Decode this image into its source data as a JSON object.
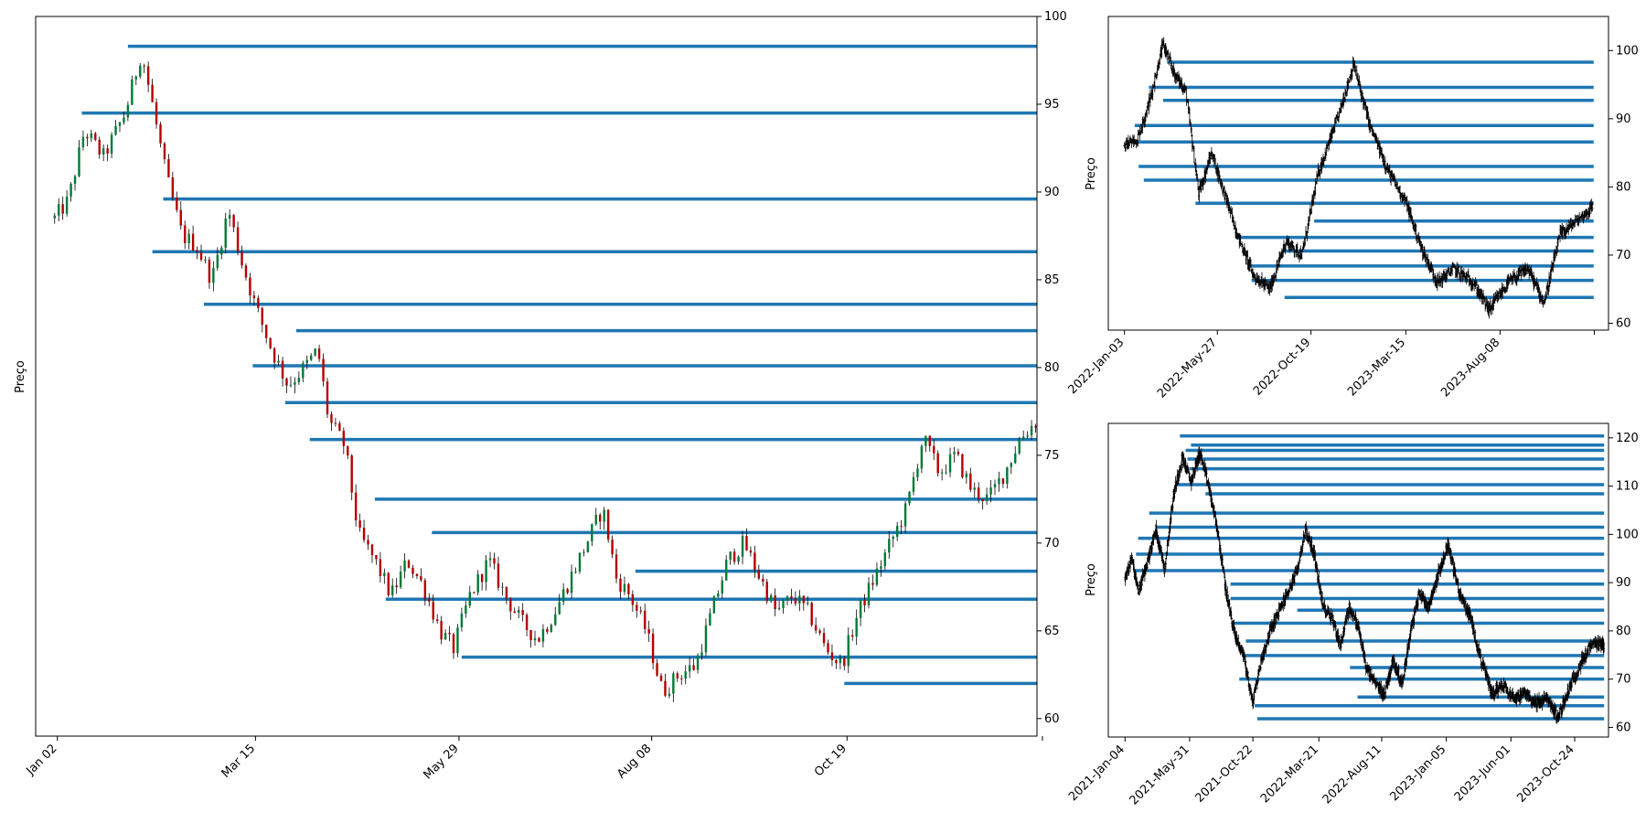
{
  "colors": {
    "level_line": "#1f77b4",
    "candle_up": "#007a37",
    "candle_down": "#b30000",
    "wick": "#000000",
    "frame": "#000000",
    "background": "#ffffff"
  },
  "chart_data": [
    {
      "id": "main",
      "type": "candlestick-with-levels",
      "ylabel": "Preço",
      "ylim": [
        59,
        100
      ],
      "yticks": [
        60,
        65,
        70,
        75,
        80,
        85,
        90,
        95,
        100
      ],
      "y_axis_side": "right",
      "xlim_days": [
        -7,
        362
      ],
      "xticks": [
        {
          "day": 1,
          "label": "Jan 02"
        },
        {
          "day": 74,
          "label": "Mar 15"
        },
        {
          "day": 149,
          "label": "May 29"
        },
        {
          "day": 220,
          "label": "Aug 08"
        },
        {
          "day": 292,
          "label": "Oct 19"
        },
        {
          "day": 364,
          "label": ""
        }
      ],
      "price_path": [
        {
          "day": 0,
          "price": 88.5
        },
        {
          "day": 5,
          "price": 89.5
        },
        {
          "day": 11,
          "price": 93.5
        },
        {
          "day": 18,
          "price": 92
        },
        {
          "day": 26,
          "price": 94.5
        },
        {
          "day": 32,
          "price": 98
        },
        {
          "day": 36,
          "price": 95
        },
        {
          "day": 41,
          "price": 91
        },
        {
          "day": 47,
          "price": 87.5
        },
        {
          "day": 52,
          "price": 87
        },
        {
          "day": 58,
          "price": 85
        },
        {
          "day": 64,
          "price": 89
        },
        {
          "day": 69,
          "price": 86
        },
        {
          "day": 74,
          "price": 83.5
        },
        {
          "day": 80,
          "price": 81
        },
        {
          "day": 86,
          "price": 79
        },
        {
          "day": 92,
          "price": 80
        },
        {
          "day": 97,
          "price": 81
        },
        {
          "day": 101,
          "price": 77
        },
        {
          "day": 107,
          "price": 75.5
        },
        {
          "day": 112,
          "price": 70.5
        },
        {
          "day": 118,
          "price": 69
        },
        {
          "day": 124,
          "price": 67
        },
        {
          "day": 130,
          "price": 69
        },
        {
          "day": 136,
          "price": 67.5
        },
        {
          "day": 142,
          "price": 65
        },
        {
          "day": 147,
          "price": 64
        },
        {
          "day": 153,
          "price": 67
        },
        {
          "day": 160,
          "price": 69
        },
        {
          "day": 166,
          "price": 67
        },
        {
          "day": 172,
          "price": 65.5
        },
        {
          "day": 178,
          "price": 64.5
        },
        {
          "day": 184,
          "price": 66
        },
        {
          "day": 190,
          "price": 68
        },
        {
          "day": 196,
          "price": 70
        },
        {
          "day": 202,
          "price": 72
        },
        {
          "day": 207,
          "price": 68
        },
        {
          "day": 212,
          "price": 67
        },
        {
          "day": 218,
          "price": 65
        },
        {
          "day": 224,
          "price": 61.5
        },
        {
          "day": 230,
          "price": 62.5
        },
        {
          "day": 236,
          "price": 63
        },
        {
          "day": 242,
          "price": 66
        },
        {
          "day": 248,
          "price": 69
        },
        {
          "day": 254,
          "price": 70
        },
        {
          "day": 260,
          "price": 68
        },
        {
          "day": 266,
          "price": 66
        },
        {
          "day": 272,
          "price": 67
        },
        {
          "day": 278,
          "price": 66
        },
        {
          "day": 284,
          "price": 64
        },
        {
          "day": 290,
          "price": 63
        },
        {
          "day": 296,
          "price": 66
        },
        {
          "day": 302,
          "price": 68
        },
        {
          "day": 308,
          "price": 70
        },
        {
          "day": 314,
          "price": 72
        },
        {
          "day": 320,
          "price": 76
        },
        {
          "day": 326,
          "price": 74
        },
        {
          "day": 332,
          "price": 75
        },
        {
          "day": 338,
          "price": 73
        },
        {
          "day": 344,
          "price": 72.5
        },
        {
          "day": 350,
          "price": 74
        },
        {
          "day": 356,
          "price": 76
        },
        {
          "day": 362,
          "price": 77
        }
      ],
      "levels": [
        {
          "price": 98.3,
          "from_day": 27,
          "to_day": 362
        },
        {
          "price": 94.5,
          "from_day": 10,
          "to_day": 362
        },
        {
          "price": 89.6,
          "from_day": 40,
          "to_day": 362
        },
        {
          "price": 86.6,
          "from_day": 36,
          "to_day": 362
        },
        {
          "price": 83.6,
          "from_day": 55,
          "to_day": 362
        },
        {
          "price": 82.1,
          "from_day": 89,
          "to_day": 362
        },
        {
          "price": 80.1,
          "from_day": 73,
          "to_day": 362
        },
        {
          "price": 78.0,
          "from_day": 85,
          "to_day": 362
        },
        {
          "price": 75.9,
          "from_day": 94,
          "to_day": 362
        },
        {
          "price": 72.5,
          "from_day": 118,
          "to_day": 362
        },
        {
          "price": 70.6,
          "from_day": 139,
          "to_day": 362
        },
        {
          "price": 68.4,
          "from_day": 214,
          "to_day": 362
        },
        {
          "price": 66.8,
          "from_day": 122,
          "to_day": 362
        },
        {
          "price": 63.5,
          "from_day": 150,
          "to_day": 362
        },
        {
          "price": 62.0,
          "from_day": 291,
          "to_day": 362
        }
      ]
    },
    {
      "id": "top-right",
      "type": "ohlc-with-levels",
      "ylabel": "Preço",
      "ylim": [
        59,
        105
      ],
      "yticks": [
        60,
        70,
        80,
        90,
        100
      ],
      "y_axis_side": "right",
      "xlim_days": [
        -25,
        750
      ],
      "xticks": [
        {
          "day": 0,
          "label": "2022-Jan-03"
        },
        {
          "day": 144,
          "label": "2022-May-27"
        },
        {
          "day": 289,
          "label": "2022-Oct-19"
        },
        {
          "day": 436,
          "label": "2023-Mar-15"
        },
        {
          "day": 582,
          "label": "2023-Aug-08"
        },
        {
          "day": 728,
          "label": ""
        }
      ],
      "price_path": [
        {
          "day": 0,
          "price": 86
        },
        {
          "day": 20,
          "price": 87
        },
        {
          "day": 40,
          "price": 93
        },
        {
          "day": 60,
          "price": 101
        },
        {
          "day": 75,
          "price": 97
        },
        {
          "day": 95,
          "price": 94
        },
        {
          "day": 115,
          "price": 79
        },
        {
          "day": 135,
          "price": 85
        },
        {
          "day": 155,
          "price": 79
        },
        {
          "day": 175,
          "price": 73
        },
        {
          "day": 200,
          "price": 67
        },
        {
          "day": 225,
          "price": 65
        },
        {
          "day": 250,
          "price": 72
        },
        {
          "day": 275,
          "price": 70
        },
        {
          "day": 300,
          "price": 82
        },
        {
          "day": 330,
          "price": 90
        },
        {
          "day": 355,
          "price": 98
        },
        {
          "day": 380,
          "price": 89
        },
        {
          "day": 410,
          "price": 82
        },
        {
          "day": 435,
          "price": 78
        },
        {
          "day": 460,
          "price": 71
        },
        {
          "day": 485,
          "price": 66
        },
        {
          "day": 510,
          "price": 68
        },
        {
          "day": 540,
          "price": 66
        },
        {
          "day": 565,
          "price": 62
        },
        {
          "day": 595,
          "price": 66
        },
        {
          "day": 625,
          "price": 68
        },
        {
          "day": 650,
          "price": 63
        },
        {
          "day": 675,
          "price": 73
        },
        {
          "day": 700,
          "price": 75
        },
        {
          "day": 725,
          "price": 77
        }
      ],
      "levels": [
        {
          "price": 98.3,
          "from_day": 66,
          "to_day": 727
        },
        {
          "price": 94.6,
          "from_day": 38,
          "to_day": 727
        },
        {
          "price": 92.7,
          "from_day": 60,
          "to_day": 727
        },
        {
          "price": 89.0,
          "from_day": 16,
          "to_day": 727
        },
        {
          "price": 86.6,
          "from_day": 10,
          "to_day": 727
        },
        {
          "price": 83.0,
          "from_day": 22,
          "to_day": 727
        },
        {
          "price": 81.0,
          "from_day": 30,
          "to_day": 727
        },
        {
          "price": 77.6,
          "from_day": 110,
          "to_day": 727
        },
        {
          "price": 75.0,
          "from_day": 294,
          "to_day": 727
        },
        {
          "price": 72.6,
          "from_day": 172,
          "to_day": 727
        },
        {
          "price": 70.6,
          "from_day": 244,
          "to_day": 727
        },
        {
          "price": 68.4,
          "from_day": 194,
          "to_day": 727
        },
        {
          "price": 66.3,
          "from_day": 197,
          "to_day": 727
        },
        {
          "price": 63.8,
          "from_day": 248,
          "to_day": 727
        }
      ]
    },
    {
      "id": "bottom-right",
      "type": "ohlc-with-levels",
      "ylabel": "Preço",
      "ylim": [
        58,
        123
      ],
      "yticks": [
        60,
        70,
        80,
        90,
        100,
        110,
        120
      ],
      "y_axis_side": "right",
      "xlim_days": [
        -38,
        1100
      ],
      "xticks": [
        {
          "day": 0,
          "label": "2021-Jan-04"
        },
        {
          "day": 147,
          "label": "2021-May-31"
        },
        {
          "day": 291,
          "label": "2021-Oct-22"
        },
        {
          "day": 441,
          "label": "2022-Mar-21"
        },
        {
          "day": 584,
          "label": "2022-Aug-11"
        },
        {
          "day": 731,
          "label": "2023-Jan-05"
        },
        {
          "day": 878,
          "label": "2023-Jun-01"
        },
        {
          "day": 1023,
          "label": "2023-Oct-24"
        }
      ],
      "price_path": [
        {
          "day": 0,
          "price": 91
        },
        {
          "day": 15,
          "price": 95
        },
        {
          "day": 30,
          "price": 88
        },
        {
          "day": 50,
          "price": 94
        },
        {
          "day": 70,
          "price": 101
        },
        {
          "day": 90,
          "price": 93
        },
        {
          "day": 110,
          "price": 108
        },
        {
          "day": 130,
          "price": 116
        },
        {
          "day": 150,
          "price": 111
        },
        {
          "day": 170,
          "price": 117
        },
        {
          "day": 190,
          "price": 110
        },
        {
          "day": 210,
          "price": 101
        },
        {
          "day": 230,
          "price": 88
        },
        {
          "day": 250,
          "price": 79
        },
        {
          "day": 270,
          "price": 75
        },
        {
          "day": 290,
          "price": 65
        },
        {
          "day": 310,
          "price": 74
        },
        {
          "day": 330,
          "price": 80
        },
        {
          "day": 350,
          "price": 84
        },
        {
          "day": 370,
          "price": 88
        },
        {
          "day": 390,
          "price": 92
        },
        {
          "day": 410,
          "price": 101
        },
        {
          "day": 430,
          "price": 96
        },
        {
          "day": 450,
          "price": 85
        },
        {
          "day": 470,
          "price": 83
        },
        {
          "day": 490,
          "price": 77
        },
        {
          "day": 510,
          "price": 85
        },
        {
          "day": 530,
          "price": 81
        },
        {
          "day": 550,
          "price": 72
        },
        {
          "day": 570,
          "price": 69
        },
        {
          "day": 590,
          "price": 67
        },
        {
          "day": 610,
          "price": 74
        },
        {
          "day": 630,
          "price": 69
        },
        {
          "day": 650,
          "price": 80
        },
        {
          "day": 670,
          "price": 88
        },
        {
          "day": 690,
          "price": 85
        },
        {
          "day": 710,
          "price": 91
        },
        {
          "day": 735,
          "price": 98
        },
        {
          "day": 760,
          "price": 88
        },
        {
          "day": 785,
          "price": 83
        },
        {
          "day": 810,
          "price": 74
        },
        {
          "day": 835,
          "price": 67
        },
        {
          "day": 860,
          "price": 69
        },
        {
          "day": 885,
          "price": 66
        },
        {
          "day": 910,
          "price": 67
        },
        {
          "day": 935,
          "price": 65
        },
        {
          "day": 960,
          "price": 66
        },
        {
          "day": 985,
          "price": 62
        },
        {
          "day": 1010,
          "price": 68
        },
        {
          "day": 1035,
          "price": 73
        },
        {
          "day": 1060,
          "price": 77
        },
        {
          "day": 1090,
          "price": 77
        }
      ],
      "levels": [
        {
          "price": 120.4,
          "from_day": 125,
          "to_day": 1090
        },
        {
          "price": 118.5,
          "from_day": 150,
          "to_day": 1090
        },
        {
          "price": 117.4,
          "from_day": 138,
          "to_day": 1090
        },
        {
          "price": 115.6,
          "from_day": 142,
          "to_day": 1090
        },
        {
          "price": 113.6,
          "from_day": 147,
          "to_day": 1090
        },
        {
          "price": 110.3,
          "from_day": 114,
          "to_day": 1090
        },
        {
          "price": 108.4,
          "from_day": 183,
          "to_day": 1090
        },
        {
          "price": 104.4,
          "from_day": 55,
          "to_day": 1090
        },
        {
          "price": 101.5,
          "from_day": 70,
          "to_day": 1090
        },
        {
          "price": 99.2,
          "from_day": 30,
          "to_day": 1090
        },
        {
          "price": 95.9,
          "from_day": 25,
          "to_day": 1090
        },
        {
          "price": 92.5,
          "from_day": 23,
          "to_day": 1090
        },
        {
          "price": 89.7,
          "from_day": 240,
          "to_day": 1090
        },
        {
          "price": 86.7,
          "from_day": 240,
          "to_day": 1090
        },
        {
          "price": 84.3,
          "from_day": 392,
          "to_day": 1090
        },
        {
          "price": 81.6,
          "from_day": 242,
          "to_day": 1090
        },
        {
          "price": 77.9,
          "from_day": 275,
          "to_day": 1090
        },
        {
          "price": 74.9,
          "from_day": 268,
          "to_day": 1090
        },
        {
          "price": 72.4,
          "from_day": 512,
          "to_day": 1090
        },
        {
          "price": 70.0,
          "from_day": 260,
          "to_day": 1090
        },
        {
          "price": 66.3,
          "from_day": 529,
          "to_day": 1090
        },
        {
          "price": 64.5,
          "from_day": 295,
          "to_day": 1090
        },
        {
          "price": 61.8,
          "from_day": 301,
          "to_day": 1090
        }
      ]
    }
  ]
}
